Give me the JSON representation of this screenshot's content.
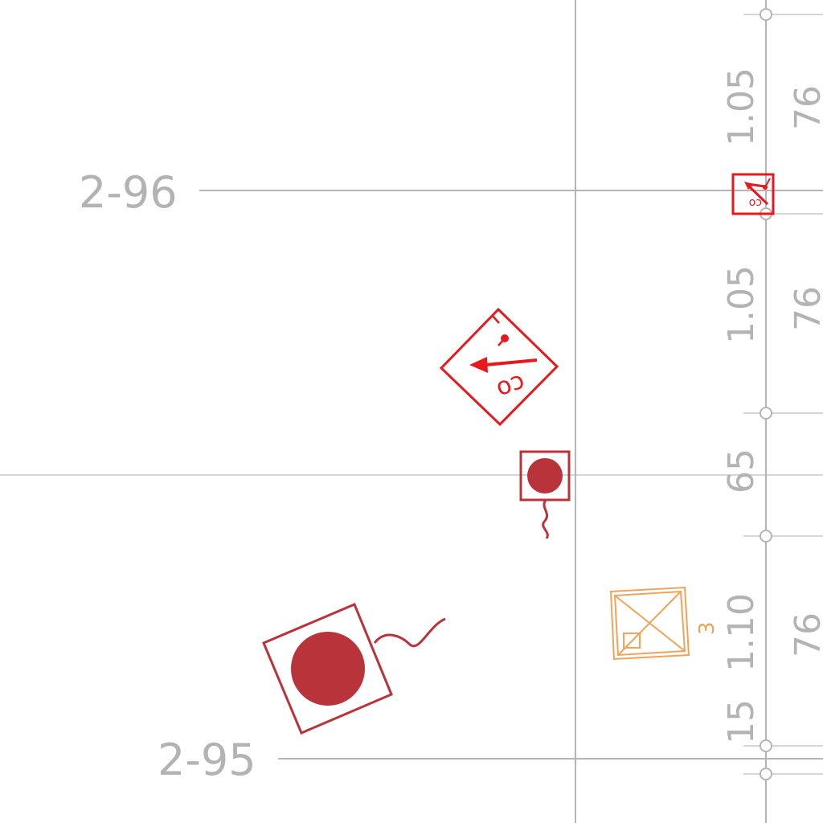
{
  "map": {
    "grid_labels": {
      "grid_2_96": "2-96",
      "grid_2_95": "2-95"
    },
    "axis_labels": [
      {
        "id": "a",
        "value": "1.05"
      },
      {
        "id": "b",
        "value": "76"
      },
      {
        "id": "c",
        "value": "1.05"
      },
      {
        "id": "d",
        "value": "76"
      },
      {
        "id": "e",
        "value": "65"
      },
      {
        "id": "f",
        "value": "1.10"
      },
      {
        "id": "g",
        "value": "76"
      },
      {
        "id": "h",
        "value": "15"
      }
    ],
    "symbols": {
      "hydrant_small_code": "co",
      "hydrant_large_code": "co",
      "orange_label": "3"
    },
    "colors": {
      "grid": "#b5b5b5",
      "label": "#b3b3b3",
      "red_symbol": "#e8191d",
      "dark_red_symbol": "#b8343a",
      "orange_symbol": "#f2a25a"
    }
  }
}
